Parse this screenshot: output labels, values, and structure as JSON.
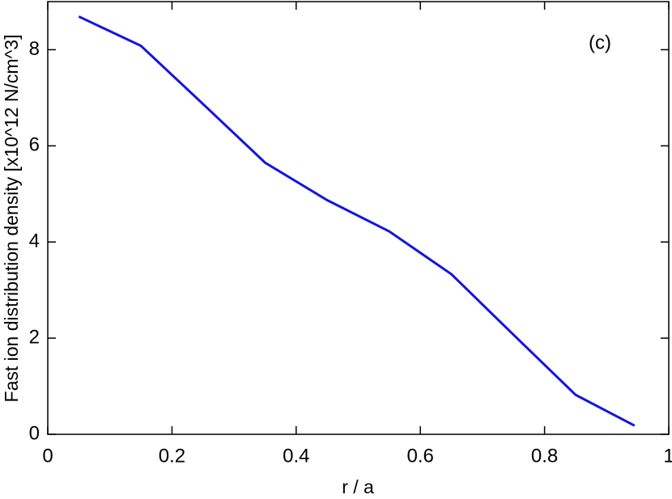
{
  "chart_data": {
    "type": "line",
    "xlabel": "r / a",
    "ylabel": "Fast ion distribution density [x10^12 N/cm^3]",
    "annotation": "(c)",
    "x": [
      0.05,
      0.15,
      0.25,
      0.35,
      0.45,
      0.55,
      0.65,
      0.75,
      0.85,
      0.945
    ],
    "series": [
      {
        "color": "#1414e0",
        "values": [
          8.69,
          8.08,
          6.87,
          5.65,
          4.87,
          4.22,
          3.33,
          2.07,
          0.82,
          0.18
        ]
      }
    ],
    "xlim": [
      0,
      1
    ],
    "xticks": [
      0,
      0.2,
      0.4,
      0.6,
      0.8,
      1
    ],
    "ylim": [
      0,
      9
    ],
    "yticks": [
      0,
      2,
      4,
      6,
      8
    ]
  }
}
